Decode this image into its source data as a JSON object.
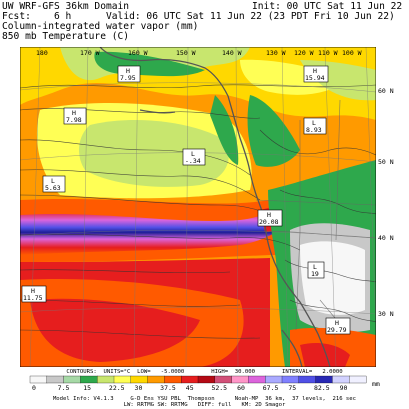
{
  "header": {
    "model": "UW WRF-GFS 36km Domain",
    "fcst": "Fcst:    6 h",
    "init": "Init: 00 UTC Sat 11 Jun 22",
    "valid": "Valid: 06 UTC Sat 11 Jun 22 (23 PDT Fri 10 Jun 22)",
    "field1": "Column-integrated water vapor (mm)",
    "field2": "850 mb Temperature (C)"
  },
  "lon_labels": [
    "180",
    "170 W",
    "160 W",
    "150 W",
    "140 W",
    "130 W",
    "120 W",
    "110 W",
    "100 W"
  ],
  "lat_labels": [
    "60 N",
    "50 N",
    "40 N",
    "30 N"
  ],
  "markers": [
    {
      "type": "H",
      "value": "7.95"
    },
    {
      "type": "H",
      "value": "7.98"
    },
    {
      "type": "L",
      "value": "-.34"
    },
    {
      "type": "L",
      "value": "5.63"
    },
    {
      "type": "H",
      "value": "15.94"
    },
    {
      "type": "L",
      "value": "8.93"
    },
    {
      "type": "H",
      "value": "11.75"
    },
    {
      "type": "H",
      "value": "20.08"
    },
    {
      "type": "L",
      "value": "19"
    },
    {
      "type": "H",
      "value": "29.79"
    }
  ],
  "colorbar": {
    "ticks": [
      "0",
      "7.5",
      "15",
      "22.5",
      "30",
      "37.5",
      "45",
      "52.5",
      "60",
      "67.5",
      "75",
      "82.5",
      "90"
    ],
    "unit": "mm",
    "colors": [
      "#f7f7f7",
      "#c8c8c8",
      "#a6d9a6",
      "#2ea84c",
      "#c8e66e",
      "#ffff55",
      "#ffd800",
      "#ff9a00",
      "#ff5a00",
      "#e61e1e",
      "#b40a14",
      "#d25078",
      "#ff96c8",
      "#dc64dc",
      "#aaaaff",
      "#8080ff",
      "#5050e6",
      "#2828b4",
      "#d2d2ff",
      "#f0f0ff"
    ]
  },
  "footer": {
    "contours": "CONTOURS:  UNITS=°C  LOW=   -5.0000        HIGH=  30.000        INTERVAL=   2.0000",
    "model_info": "Model Info: V4.1.3     G-D Ens YSU PBL  Thompson      Noah-MP  36 km,  37 levels,  216 sec",
    "physics": "LW: RRTMG SW: RRTMG   DIFF: full   KM: 2D Smagor"
  }
}
